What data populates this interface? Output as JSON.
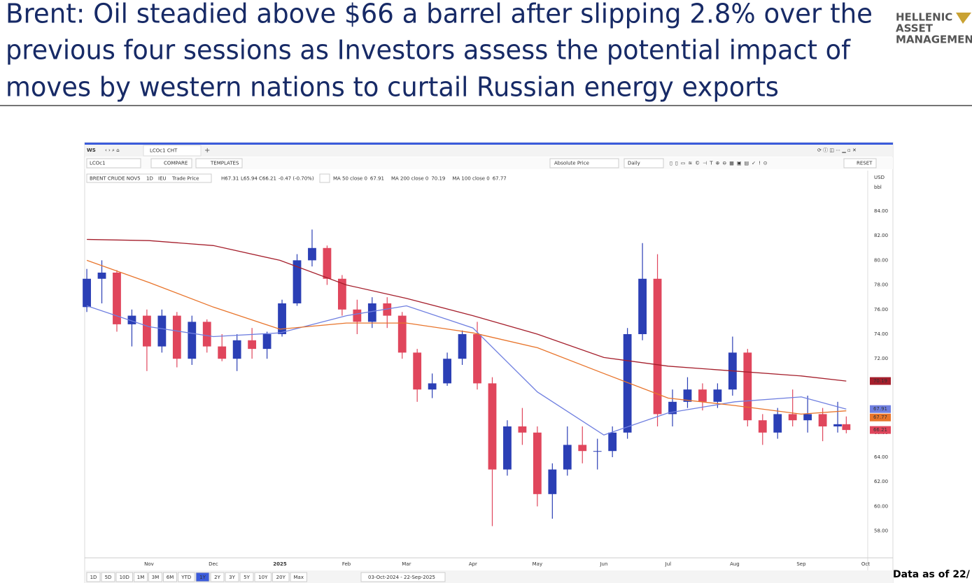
{
  "header": {
    "title": [
      "Brent: Oil steadied above $66 a barrel after slipping 2.8% over the",
      "previous four sessions as Investors assess the potential impact of",
      "moves by western nations to curtail Russian energy exports"
    ],
    "logo": [
      "HELLENIC",
      "ASSET",
      "MANAGEMEN"
    ]
  },
  "toolbar": {
    "workspace": "WS",
    "tab": "LCOc1 CHT",
    "ric": "LCOc1",
    "compare": "COMPARE",
    "templates": "TEMPLATES",
    "price_mode": "Absolute Price",
    "interval": "Daily",
    "reset": "RESET",
    "currency": "USD",
    "unit": "bbl"
  },
  "legend": {
    "instrument": "BRENT CRUDE NOV5",
    "interval": "1D",
    "exchange": "IEU",
    "field": "Trade Price",
    "ohlc": [
      "H67.31",
      "L65.94",
      "C66.21",
      "-0.47 (-0.70%)"
    ]
  },
  "range_bar": {
    "buttons": [
      "1D",
      "5D",
      "10D",
      "1M",
      "3M",
      "6M",
      "YTD",
      "1Y",
      "2Y",
      "3Y",
      "5Y",
      "10Y",
      "20Y",
      "Max"
    ],
    "active": "1Y",
    "dates": "03-Oct-2024  -  22-Sep-2025"
  },
  "footnote": "Data as of 22/",
  "chart_data": {
    "type": "candlestick",
    "up_color": "#2b3fb5",
    "down_color": "#e0465c",
    "grid": false,
    "xlim": [
      "02-Oct-2024",
      "02-Oct-2025"
    ],
    "xticks": [
      {
        "value": "01-Nov-2024",
        "label": "Nov"
      },
      {
        "value": "01-Dec-2024",
        "label": "Dec"
      },
      {
        "value": "01-Jan-2025",
        "label": "2025"
      },
      {
        "value": "01-Feb-2025",
        "label": "Feb"
      },
      {
        "value": "01-Mar-2025",
        "label": "Mar"
      },
      {
        "value": "01-Apr-2025",
        "label": "Apr"
      },
      {
        "value": "01-May-2025",
        "label": "May"
      },
      {
        "value": "01-Jun-2025",
        "label": "Jun"
      },
      {
        "value": "01-Jul-2025",
        "label": "Jul"
      },
      {
        "value": "01-Aug-2025",
        "label": "Aug"
      },
      {
        "value": "01-Sep-2025",
        "label": "Sep"
      },
      {
        "value": "01-Oct-2025",
        "label": "Oct"
      }
    ],
    "ylim": [
      55.82,
      86.1
    ],
    "yticks": [
      {
        "value": 58,
        "label": "58.00"
      },
      {
        "value": 60,
        "label": "60.00"
      },
      {
        "value": 62,
        "label": "62.00"
      },
      {
        "value": 64,
        "label": "64.00"
      },
      {
        "value": 66,
        "label": "66.00"
      },
      {
        "value": 68,
        "label": "68.00"
      },
      {
        "value": 70,
        "label": "70.00"
      },
      {
        "value": 72,
        "label": "72.00"
      },
      {
        "value": 74,
        "label": "74.00"
      },
      {
        "value": 76,
        "label": "76.00"
      },
      {
        "value": 78,
        "label": "78.00"
      },
      {
        "value": 80,
        "label": "80.00"
      },
      {
        "value": 82,
        "label": "82.00"
      },
      {
        "value": 84,
        "label": "84.00"
      }
    ],
    "x": [
      "03-Oct-2024",
      "10-Oct-2024",
      "17-Oct-2024",
      "24-Oct-2024",
      "31-Oct-2024",
      "07-Nov-2024",
      "14-Nov-2024",
      "21-Nov-2024",
      "28-Nov-2024",
      "05-Dec-2024",
      "12-Dec-2024",
      "19-Dec-2024",
      "26-Dec-2024",
      "02-Jan-2025",
      "09-Jan-2025",
      "16-Jan-2025",
      "23-Jan-2025",
      "30-Jan-2025",
      "06-Feb-2025",
      "13-Feb-2025",
      "20-Feb-2025",
      "27-Feb-2025",
      "06-Mar-2025",
      "13-Mar-2025",
      "20-Mar-2025",
      "27-Mar-2025",
      "03-Apr-2025",
      "10-Apr-2025",
      "17-Apr-2025",
      "24-Apr-2025",
      "01-May-2025",
      "08-May-2025",
      "15-May-2025",
      "22-May-2025",
      "29-May-2025",
      "05-Jun-2025",
      "12-Jun-2025",
      "19-Jun-2025",
      "26-Jun-2025",
      "03-Jul-2025",
      "10-Jul-2025",
      "17-Jul-2025",
      "24-Jul-2025",
      "31-Jul-2025",
      "07-Aug-2025",
      "14-Aug-2025",
      "21-Aug-2025",
      "28-Aug-2025",
      "04-Sep-2025",
      "11-Sep-2025",
      "18-Sep-2025",
      "22-Sep-2025"
    ],
    "open": [
      76.2,
      78.5,
      79.0,
      74.8,
      75.5,
      73.0,
      75.5,
      72.0,
      75.0,
      73.0,
      72.0,
      73.5,
      72.8,
      74.0,
      76.5,
      80.0,
      81.0,
      78.5,
      76.0,
      75.0,
      76.5,
      75.5,
      72.5,
      69.5,
      70.0,
      72.0,
      74.0,
      70.0,
      63.0,
      66.5,
      66.0,
      61.0,
      63.0,
      65.0,
      64.5,
      64.5,
      66.0,
      74.0,
      78.5,
      67.5,
      68.5,
      69.5,
      68.5,
      69.5,
      72.5,
      67.0,
      66.0,
      67.5,
      67.0,
      67.5,
      66.5,
      66.68
    ],
    "high": [
      79.3,
      80.0,
      79.2,
      76.0,
      76.0,
      76.0,
      75.8,
      75.5,
      75.2,
      74.0,
      74.0,
      74.5,
      74.2,
      76.8,
      80.5,
      82.5,
      81.2,
      78.8,
      76.8,
      77.0,
      77.0,
      75.8,
      72.8,
      70.8,
      72.5,
      74.3,
      75.0,
      70.5,
      67.0,
      68.0,
      66.5,
      63.5,
      66.5,
      66.5,
      65.5,
      66.5,
      74.5,
      81.4,
      80.5,
      69.5,
      70.5,
      70.0,
      70.0,
      73.8,
      72.8,
      67.5,
      68.0,
      69.5,
      69.0,
      68.0,
      68.5,
      67.31
    ],
    "low": [
      75.8,
      76.5,
      74.2,
      73.0,
      71.0,
      72.5,
      71.3,
      71.5,
      72.5,
      71.8,
      71.0,
      72.0,
      72.0,
      73.8,
      76.3,
      79.5,
      78.0,
      75.5,
      74.0,
      74.5,
      74.5,
      72.0,
      68.5,
      68.8,
      69.8,
      71.5,
      69.5,
      58.4,
      62.5,
      65.0,
      60.0,
      59.0,
      62.5,
      63.5,
      63.0,
      64.0,
      65.5,
      73.5,
      66.5,
      66.5,
      68.0,
      67.8,
      68.0,
      69.0,
      66.5,
      65.0,
      65.5,
      66.5,
      66.0,
      65.3,
      66.0,
      65.94
    ],
    "close": [
      78.5,
      79.0,
      74.8,
      75.5,
      73.0,
      75.5,
      72.0,
      75.0,
      73.0,
      72.0,
      73.5,
      72.8,
      74.0,
      76.5,
      80.0,
      81.0,
      78.5,
      76.0,
      75.0,
      76.5,
      75.5,
      72.5,
      69.5,
      70.0,
      72.0,
      74.0,
      70.0,
      63.0,
      66.5,
      66.0,
      61.0,
      63.0,
      65.0,
      64.5,
      64.5,
      66.0,
      74.0,
      78.5,
      67.5,
      68.5,
      69.5,
      68.5,
      69.5,
      72.5,
      67.0,
      66.0,
      67.5,
      67.0,
      67.5,
      66.5,
      66.68,
      66.21
    ],
    "series": [
      {
        "name": "MA 50 close 0",
        "color": "#6f7fe0",
        "x": [
          "03-Oct-2024",
          "01-Nov-2024",
          "01-Dec-2024",
          "01-Jan-2025",
          "01-Feb-2025",
          "01-Mar-2025",
          "01-Apr-2025",
          "01-May-2025",
          "01-Jun-2025",
          "01-Jul-2025",
          "01-Aug-2025",
          "01-Sep-2025",
          "22-Sep-2025"
        ],
        "values": [
          76.3,
          74.6,
          73.8,
          74.1,
          75.5,
          76.3,
          74.5,
          69.3,
          65.8,
          67.6,
          68.5,
          68.9,
          67.91
        ]
      },
      {
        "name": "MA 200 close 0",
        "color": "#a51f2c",
        "x": [
          "03-Oct-2024",
          "01-Nov-2024",
          "01-Dec-2024",
          "01-Jan-2025",
          "01-Feb-2025",
          "01-Mar-2025",
          "01-Apr-2025",
          "01-May-2025",
          "01-Jun-2025",
          "01-Jul-2025",
          "01-Aug-2025",
          "01-Sep-2025",
          "22-Sep-2025"
        ],
        "values": [
          81.7,
          81.6,
          81.2,
          80.0,
          78.0,
          76.9,
          75.5,
          74.0,
          72.1,
          71.4,
          71.0,
          70.6,
          70.19
        ]
      },
      {
        "name": "MA 100 close 0",
        "color": "#e8742b",
        "x": [
          "03-Oct-2024",
          "01-Nov-2024",
          "01-Dec-2024",
          "01-Jan-2025",
          "01-Feb-2025",
          "01-Mar-2025",
          "01-Apr-2025",
          "01-May-2025",
          "01-Jun-2025",
          "01-Jul-2025",
          "01-Aug-2025",
          "01-Sep-2025",
          "22-Sep-2025"
        ],
        "values": [
          80.0,
          78.2,
          76.2,
          74.4,
          74.9,
          74.9,
          74.1,
          72.9,
          70.8,
          68.8,
          68.2,
          67.5,
          67.77
        ]
      }
    ]
  }
}
